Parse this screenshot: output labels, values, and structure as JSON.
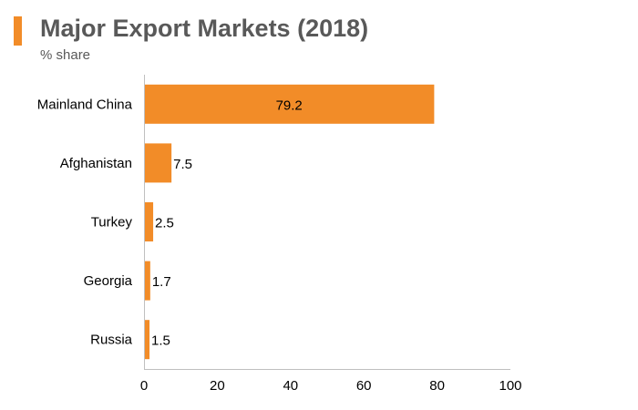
{
  "colors": {
    "bar": "#f28c28",
    "title_marker": "#f28c28",
    "axis": "#bfbfbf",
    "text": "#000000",
    "title": "#595959"
  },
  "chart_data": {
    "type": "bar",
    "orientation": "horizontal",
    "title": "Major Export Markets (2018)",
    "subtitle": "% share",
    "categories": [
      "Mainland China",
      "Afghanistan",
      "Turkey",
      "Georgia",
      "Russia"
    ],
    "values": [
      79.2,
      7.5,
      2.5,
      1.7,
      1.5
    ],
    "value_labels": [
      "79.2",
      "7.5",
      "2.5",
      "1.7",
      "1.5"
    ],
    "xlim": [
      0,
      100
    ],
    "xticks": [
      0,
      20,
      40,
      60,
      80,
      100
    ],
    "xlabel": "",
    "ylabel": "",
    "grid": false,
    "legend": "none"
  }
}
